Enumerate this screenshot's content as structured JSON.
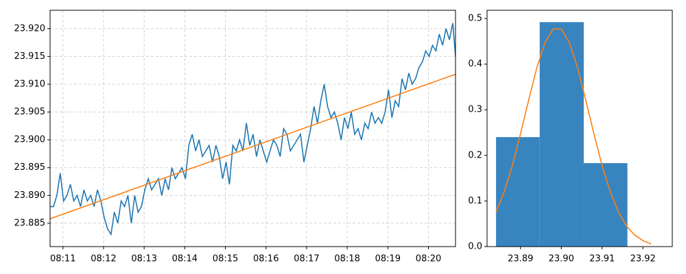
{
  "chart_data": [
    {
      "type": "line",
      "xlim": [
        "08:10:41",
        "08:20:40"
      ],
      "xticks": [
        "08:11",
        "08:12",
        "08:13",
        "08:14",
        "08:15",
        "08:16",
        "08:17",
        "08:18",
        "08:19",
        "08:20"
      ],
      "ylim": [
        23.8808,
        23.9233
      ],
      "yticks": [
        23.885,
        {
          "value": 23.89,
          "label": "23.890"
        },
        23.895,
        {
          "value": 23.9,
          "label": "23.900"
        },
        23.905,
        {
          "value": 23.91,
          "label": "23.910"
        },
        23.915,
        {
          "value": 23.92,
          "label": "23.920"
        }
      ],
      "grid": true,
      "series": [
        {
          "color": "#1f77b4",
          "x": [
            "08:10:41",
            "08:10:46",
            "08:10:51",
            "08:10:56",
            "08:11:01",
            "08:11:06",
            "08:11:11",
            "08:11:16",
            "08:11:21",
            "08:11:26",
            "08:11:31",
            "08:11:36",
            "08:11:41",
            "08:11:46",
            "08:11:51",
            "08:11:56",
            "08:12:01",
            "08:12:06",
            "08:12:11",
            "08:12:16",
            "08:12:21",
            "08:12:26",
            "08:12:31",
            "08:12:36",
            "08:12:41",
            "08:12:46",
            "08:12:51",
            "08:12:56",
            "08:13:01",
            "08:13:06",
            "08:13:11",
            "08:13:16",
            "08:13:21",
            "08:13:26",
            "08:13:31",
            "08:13:36",
            "08:13:41",
            "08:13:46",
            "08:13:51",
            "08:13:56",
            "08:14:01",
            "08:14:06",
            "08:14:11",
            "08:14:16",
            "08:14:21",
            "08:14:26",
            "08:14:31",
            "08:14:36",
            "08:14:41",
            "08:14:46",
            "08:14:51",
            "08:14:56",
            "08:15:01",
            "08:15:06",
            "08:15:11",
            "08:15:16",
            "08:15:21",
            "08:15:26",
            "08:15:31",
            "08:15:36",
            "08:15:41",
            "08:15:46",
            "08:15:51",
            "08:15:56",
            "08:16:01",
            "08:16:06",
            "08:16:11",
            "08:16:16",
            "08:16:21",
            "08:16:26",
            "08:16:31",
            "08:16:36",
            "08:16:41",
            "08:16:46",
            "08:16:51",
            "08:16:56",
            "08:17:01",
            "08:17:06",
            "08:17:11",
            "08:17:16",
            "08:17:21",
            "08:17:26",
            "08:17:31",
            "08:17:36",
            "08:17:41",
            "08:17:46",
            "08:17:51",
            "08:17:56",
            "08:18:01",
            "08:18:06",
            "08:18:11",
            "08:18:16",
            "08:18:21",
            "08:18:26",
            "08:18:31",
            "08:18:36",
            "08:18:41",
            "08:18:46",
            "08:18:51",
            "08:18:56",
            "08:19:01",
            "08:19:06",
            "08:19:11",
            "08:19:16",
            "08:19:21",
            "08:19:26",
            "08:19:31",
            "08:19:36",
            "08:19:41",
            "08:19:46",
            "08:19:51",
            "08:19:56",
            "08:20:01",
            "08:20:06",
            "08:20:11",
            "08:20:16",
            "08:20:21",
            "08:20:26",
            "08:20:31",
            "08:20:36",
            "08:20:40"
          ],
          "values": [
            23.888,
            23.888,
            23.89,
            23.894,
            23.889,
            23.89,
            23.892,
            23.889,
            23.89,
            23.888,
            23.891,
            23.889,
            23.89,
            23.888,
            23.891,
            23.889,
            23.886,
            23.884,
            23.883,
            23.887,
            23.885,
            23.889,
            23.888,
            23.89,
            23.885,
            23.89,
            23.887,
            23.888,
            23.891,
            23.893,
            23.891,
            23.892,
            23.893,
            23.89,
            23.893,
            23.891,
            23.895,
            23.893,
            23.894,
            23.895,
            23.893,
            23.899,
            23.901,
            23.898,
            23.9,
            23.897,
            23.898,
            23.899,
            23.896,
            23.899,
            23.897,
            23.893,
            23.896,
            23.892,
            23.899,
            23.898,
            23.9,
            23.898,
            23.903,
            23.899,
            23.901,
            23.897,
            23.9,
            23.898,
            23.896,
            23.898,
            23.9,
            23.899,
            23.897,
            23.902,
            23.901,
            23.898,
            23.899,
            23.9,
            23.901,
            23.896,
            23.899,
            23.902,
            23.906,
            23.903,
            23.907,
            23.91,
            23.906,
            23.904,
            23.905,
            23.903,
            23.9,
            23.904,
            23.902,
            23.905,
            23.901,
            23.902,
            23.9,
            23.903,
            23.902,
            23.905,
            23.903,
            23.904,
            23.903,
            23.905,
            23.909,
            23.904,
            23.907,
            23.906,
            23.911,
            23.909,
            23.912,
            23.91,
            23.911,
            23.913,
            23.914,
            23.916,
            23.915,
            23.917,
            23.916,
            23.919,
            23.917,
            23.92,
            23.918,
            23.921,
            23.915
          ]
        },
        {
          "color": "#ff7f0e",
          "x": [
            "08:10:41",
            "08:20:40"
          ],
          "values": [
            23.8858,
            23.9118
          ]
        }
      ]
    },
    {
      "type": "histogram",
      "xlim": [
        23.8818,
        23.9272
      ],
      "xticks": [
        23.89,
        {
          "value": 23.9,
          "label": "23.90"
        },
        23.91,
        23.92
      ],
      "ylim": [
        0,
        0.518
      ],
      "yticks": [
        {
          "value": 0,
          "label": "0.0"
        },
        0.1,
        0.2,
        0.3,
        0.4,
        0.5
      ],
      "bins": [
        23.884,
        23.8947,
        23.9055,
        23.9162
      ],
      "values": [
        0.24,
        0.492,
        0.183
      ],
      "color": "#3884bf",
      "curve": {
        "color": "#ff7f0e",
        "x": [
          23.884,
          23.886,
          23.888,
          23.89,
          23.892,
          23.894,
          23.896,
          23.898,
          23.9,
          23.902,
          23.904,
          23.906,
          23.908,
          23.91,
          23.912,
          23.914,
          23.916,
          23.918,
          23.92,
          23.922
        ],
        "values": [
          0.076,
          0.12,
          0.178,
          0.247,
          0.321,
          0.392,
          0.447,
          0.477,
          0.477,
          0.447,
          0.392,
          0.321,
          0.247,
          0.178,
          0.12,
          0.076,
          0.045,
          0.025,
          0.013,
          0.006
        ]
      }
    }
  ]
}
